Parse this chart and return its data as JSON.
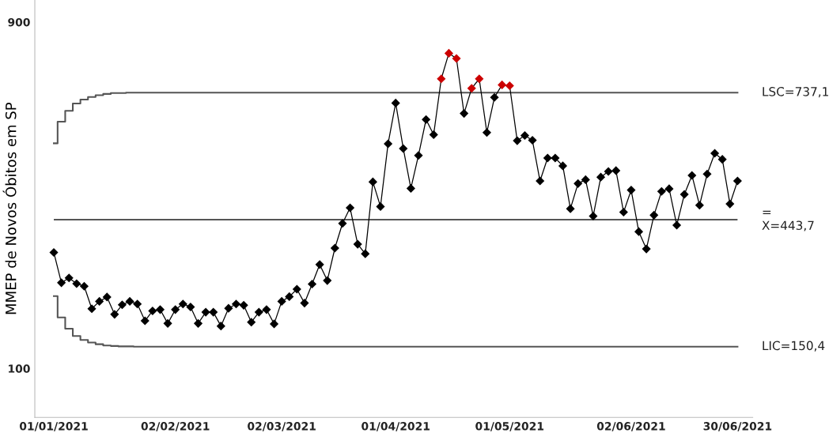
{
  "chart_data": {
    "type": "line",
    "ylabel": "MMEP de Novos Óbitos em SP",
    "x": [
      "2021-01-01",
      "2021-01-03",
      "2021-01-05",
      "2021-01-07",
      "2021-01-09",
      "2021-01-11",
      "2021-01-13",
      "2021-01-15",
      "2021-01-17",
      "2021-01-19",
      "2021-01-21",
      "2021-01-23",
      "2021-01-25",
      "2021-01-27",
      "2021-01-29",
      "2021-01-31",
      "2021-02-02",
      "2021-02-04",
      "2021-02-06",
      "2021-02-08",
      "2021-02-10",
      "2021-02-12",
      "2021-02-14",
      "2021-02-16",
      "2021-02-18",
      "2021-02-20",
      "2021-02-22",
      "2021-02-24",
      "2021-02-26",
      "2021-02-28",
      "2021-03-02",
      "2021-03-04",
      "2021-03-06",
      "2021-03-08",
      "2021-03-10",
      "2021-03-12",
      "2021-03-14",
      "2021-03-16",
      "2021-03-18",
      "2021-03-20",
      "2021-03-22",
      "2021-03-24",
      "2021-03-26",
      "2021-03-28",
      "2021-03-30",
      "2021-04-01",
      "2021-04-03",
      "2021-04-05",
      "2021-04-07",
      "2021-04-09",
      "2021-04-11",
      "2021-04-13",
      "2021-04-15",
      "2021-04-17",
      "2021-04-19",
      "2021-04-21",
      "2021-04-23",
      "2021-04-25",
      "2021-04-27",
      "2021-04-29",
      "2021-05-01",
      "2021-05-03",
      "2021-05-05",
      "2021-05-07",
      "2021-05-09",
      "2021-05-11",
      "2021-05-13",
      "2021-05-15",
      "2021-05-17",
      "2021-05-19",
      "2021-05-21",
      "2021-05-23",
      "2021-05-25",
      "2021-05-27",
      "2021-05-29",
      "2021-05-31",
      "2021-06-02",
      "2021-06-04",
      "2021-06-06",
      "2021-06-08",
      "2021-06-10",
      "2021-06-12",
      "2021-06-14",
      "2021-06-16",
      "2021-06-18",
      "2021-06-20",
      "2021-06-22",
      "2021-06-24",
      "2021-06-26",
      "2021-06-28",
      "2021-06-30"
    ],
    "series": [
      {
        "type": "step",
        "color": "#555555",
        "values": [
          620,
          670,
          695,
          712,
          721,
          727,
          731,
          734,
          736,
          736,
          737,
          737.1,
          737.1,
          737.1,
          737.1,
          737.1,
          737.1,
          737.1,
          737.1,
          737.1,
          737.1,
          737.1,
          737.1,
          737.1,
          737.1,
          737.1,
          737.1,
          737.1,
          737.1,
          737.1,
          737.1,
          737.1,
          737.1,
          737.1,
          737.1,
          737.1,
          737.1,
          737.1,
          737.1,
          737.1,
          737.1,
          737.1,
          737.1,
          737.1,
          737.1,
          737.1,
          737.1,
          737.1,
          737.1,
          737.1,
          737.1,
          737.1,
          737.1,
          737.1,
          737.1,
          737.1,
          737.1,
          737.1,
          737.1,
          737.1,
          737.1,
          737.1,
          737.1,
          737.1,
          737.1,
          737.1,
          737.1,
          737.1,
          737.1,
          737.1,
          737.1,
          737.1,
          737.1,
          737.1,
          737.1,
          737.1,
          737.1,
          737.1,
          737.1,
          737.1,
          737.1,
          737.1,
          737.1,
          737.1,
          737.1,
          737.1,
          737.1,
          737.1,
          737.1,
          737.1,
          737.1
        ]
      },
      {
        "type": "step",
        "color": "#555555",
        "values": [
          267,
          218,
          192,
          175,
          166,
          160,
          156,
          153,
          152,
          151,
          151,
          150.4,
          150.4,
          150.4,
          150.4,
          150.4,
          150.4,
          150.4,
          150.4,
          150.4,
          150.4,
          150.4,
          150.4,
          150.4,
          150.4,
          150.4,
          150.4,
          150.4,
          150.4,
          150.4,
          150.4,
          150.4,
          150.4,
          150.4,
          150.4,
          150.4,
          150.4,
          150.4,
          150.4,
          150.4,
          150.4,
          150.4,
          150.4,
          150.4,
          150.4,
          150.4,
          150.4,
          150.4,
          150.4,
          150.4,
          150.4,
          150.4,
          150.4,
          150.4,
          150.4,
          150.4,
          150.4,
          150.4,
          150.4,
          150.4,
          150.4,
          150.4,
          150.4,
          150.4,
          150.4,
          150.4,
          150.4,
          150.4,
          150.4,
          150.4,
          150.4,
          150.4,
          150.4,
          150.4,
          150.4,
          150.4,
          150.4,
          150.4,
          150.4,
          150.4,
          150.4,
          150.4,
          150.4,
          150.4,
          150.4,
          150.4,
          150.4,
          150.4,
          150.4,
          150.4,
          150.4
        ]
      },
      {
        "color": "#000000",
        "marker": "diamond",
        "values": [
          368,
          298,
          309,
          296,
          290,
          238,
          255,
          265,
          225,
          247,
          255,
          249,
          210,
          233,
          236,
          204,
          236,
          249,
          242,
          204,
          230,
          230,
          198,
          239,
          249,
          246,
          207,
          230,
          236,
          203,
          255,
          266,
          283,
          251,
          295,
          340,
          303,
          378,
          435,
          471,
          387,
          365,
          531,
          474,
          619,
          713,
          608,
          516,
          592,
          675,
          640,
          769,
          828,
          816,
          689,
          747,
          769,
          645,
          726,
          755,
          753,
          626,
          638,
          627,
          533,
          586,
          586,
          568,
          469,
          527,
          536,
          452,
          542,
          555,
          557,
          461,
          512,
          416,
          376,
          454,
          509,
          515,
          431,
          502,
          546,
          477,
          549,
          597,
          583,
          480,
          533
        ],
        "colors": [
          "#000000",
          "#000000",
          "#000000",
          "#000000",
          "#000000",
          "#000000",
          "#000000",
          "#000000",
          "#000000",
          "#000000",
          "#000000",
          "#000000",
          "#000000",
          "#000000",
          "#000000",
          "#000000",
          "#000000",
          "#000000",
          "#000000",
          "#000000",
          "#000000",
          "#000000",
          "#000000",
          "#000000",
          "#000000",
          "#000000",
          "#000000",
          "#000000",
          "#000000",
          "#000000",
          "#000000",
          "#000000",
          "#000000",
          "#000000",
          "#000000",
          "#000000",
          "#000000",
          "#000000",
          "#000000",
          "#000000",
          "#000000",
          "#000000",
          "#000000",
          "#000000",
          "#000000",
          "#000000",
          "#000000",
          "#000000",
          "#000000",
          "#000000",
          "#000000",
          "#cc0000",
          "#cc0000",
          "#cc0000",
          "#000000",
          "#cc0000",
          "#cc0000",
          "#000000",
          "#000000",
          "#cc0000",
          "#cc0000",
          "#000000",
          "#000000",
          "#000000",
          "#000000",
          "#000000",
          "#000000",
          "#000000",
          "#000000",
          "#000000",
          "#000000",
          "#000000",
          "#000000",
          "#000000",
          "#000000",
          "#000000",
          "#000000",
          "#000000",
          "#000000",
          "#000000",
          "#000000",
          "#000000",
          "#000000",
          "#000000",
          "#000000",
          "#000000",
          "#000000",
          "#000000",
          "#000000",
          "#000000",
          "#000000"
        ]
      }
    ],
    "ref_lines": [
      {
        "axis": "y",
        "value": 443.7,
        "label": "=\nX=443,7",
        "color": "#555555"
      }
    ],
    "annotations": [
      {
        "text": "LSC=737,1",
        "x": "2021-06-30",
        "y": 737.1
      },
      {
        "text": "LIC=150,4",
        "x": "2021-06-30",
        "y": 150.4
      }
    ],
    "xlim": [
      "2020-12-27",
      "2021-07-04"
    ],
    "xticks": [
      {
        "value": "2021-01-01",
        "label": "01/01/2021"
      },
      {
        "value": "2021-02-02",
        "label": "02/02/2021"
      },
      {
        "value": "2021-03-02",
        "label": "02/03/2021"
      },
      {
        "value": "2021-04-01",
        "label": "01/04/2021"
      },
      {
        "value": "2021-05-01",
        "label": "01/05/2021"
      },
      {
        "value": "2021-06-02",
        "label": "02/06/2021"
      },
      {
        "value": "2021-06-30",
        "label": "30/06/2021"
      }
    ],
    "ylim": [
      -13,
      951
    ],
    "yticks": [
      100,
      900
    ]
  }
}
